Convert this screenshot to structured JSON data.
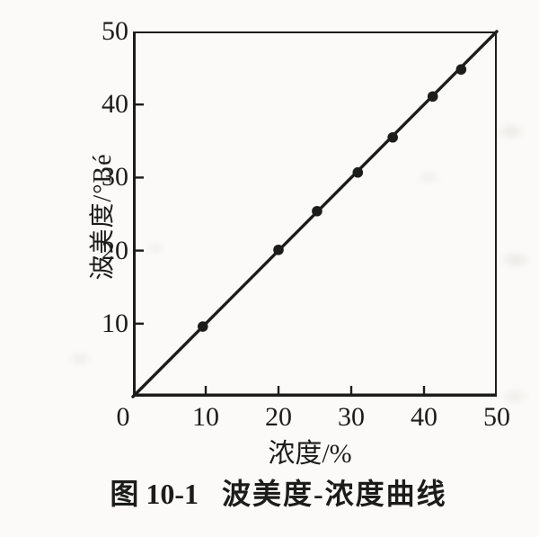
{
  "colors": {
    "ink": "#1c1c1c",
    "paper": "#fbfaf8"
  },
  "chart_data": {
    "type": "line",
    "title": "图 10-1 波美度-浓度曲线",
    "xlabel": "浓度/%",
    "ylabel": "波美度/°Bé",
    "xlim": [
      0,
      50
    ],
    "ylim": [
      0,
      50
    ],
    "x_ticks": [
      0,
      10,
      20,
      30,
      40,
      50
    ],
    "y_ticks": [
      0,
      10,
      20,
      30,
      40,
      50
    ],
    "grid": false,
    "legend": "none",
    "series": [
      {
        "name": "波美度-浓度曲线",
        "marker": "filled-circle",
        "line": {
          "x": [
            0,
            50
          ],
          "y": [
            0,
            50
          ]
        },
        "points": {
          "x": [
            9.6,
            20.0,
            25.3,
            30.9,
            35.7,
            41.2,
            45.1
          ],
          "y": [
            9.6,
            20.1,
            25.4,
            30.7,
            35.5,
            41.1,
            44.8
          ]
        }
      }
    ]
  },
  "caption": {
    "figure_label": "图 10-1",
    "figure_title": "波美度-浓度曲线"
  }
}
